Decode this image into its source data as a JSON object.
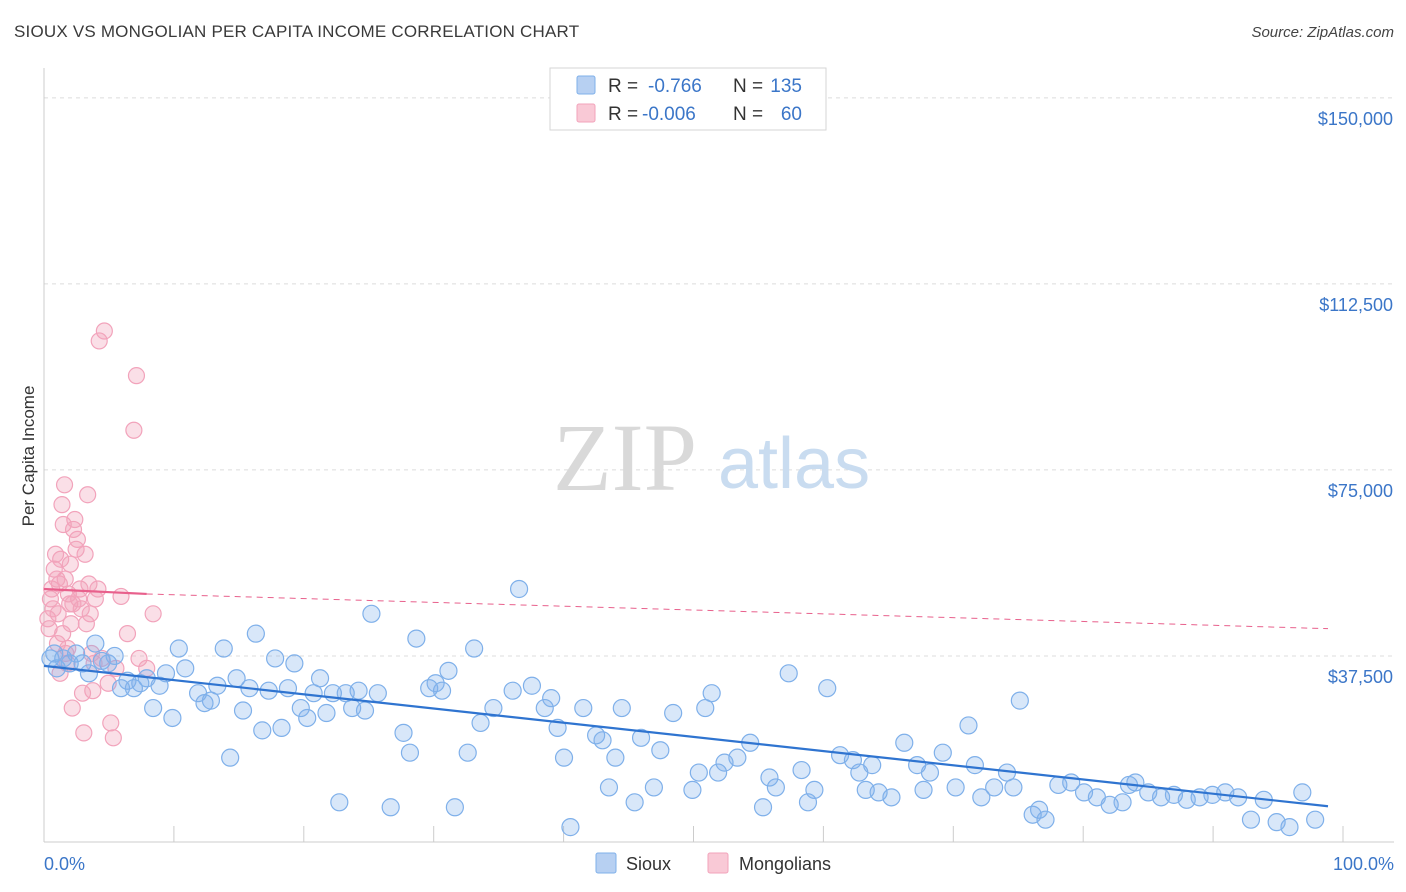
{
  "title": "SIOUX VS MONGOLIAN PER CAPITA INCOME CORRELATION CHART",
  "source": "Source: ZipAtlas.com",
  "watermark": {
    "zip": "ZIP",
    "atlas": "atlas"
  },
  "colors": {
    "sioux": "#7fb0ea",
    "sioux_line": "#2f74d0",
    "mongolians": "#f2a3bb",
    "mongolians_line": "#e8608c",
    "tick_text": "#3b76c8",
    "grid": "#dcdcdc"
  },
  "legend": {
    "rows": [
      {
        "r_label": "R =",
        "r_value": "-0.766",
        "n_label": "N =",
        "n_value": "135"
      },
      {
        "r_label": "R =",
        "r_value": "-0.006",
        "n_label": "N =",
        "n_value": "60"
      }
    ]
  },
  "bottom_legend": [
    "Sioux",
    "Mongolians"
  ],
  "chart_data": {
    "type": "scatter",
    "title": "SIOUX VS MONGOLIAN PER CAPITA INCOME CORRELATION CHART",
    "xlabel": "",
    "ylabel": "Per Capita Income",
    "x_tick_labels": [
      "0.0%",
      "100.0%"
    ],
    "y_tick_labels": [
      "$37,500",
      "$75,000",
      "$112,500",
      "$150,000"
    ],
    "y_ticks": [
      37500,
      75000,
      112500,
      150000
    ],
    "xlim": [
      0,
      100
    ],
    "ylim": [
      0,
      154000
    ],
    "grid": true,
    "legend_position": "top-center",
    "series": [
      {
        "name": "Sioux",
        "r": -0.766,
        "n": 135,
        "trend": {
          "x": [
            0,
            100
          ],
          "y": [
            35500,
            7200
          ],
          "style": "solid"
        },
        "points": [
          [
            0.5,
            37000
          ],
          [
            0.8,
            38000
          ],
          [
            1,
            35000
          ],
          [
            1.5,
            37000
          ],
          [
            2,
            36000
          ],
          [
            2.5,
            38000
          ],
          [
            3,
            36000
          ],
          [
            3.5,
            34000
          ],
          [
            4,
            40000
          ],
          [
            4.5,
            36500
          ],
          [
            5,
            36000
          ],
          [
            5.5,
            37500
          ],
          [
            6,
            31000
          ],
          [
            6.5,
            32500
          ],
          [
            7,
            31000
          ],
          [
            7.5,
            32000
          ],
          [
            8,
            33000
          ],
          [
            8.5,
            27000
          ],
          [
            9,
            31500
          ],
          [
            9.5,
            34000
          ],
          [
            10,
            25000
          ],
          [
            10.5,
            39000
          ],
          [
            11,
            35000
          ],
          [
            12,
            30000
          ],
          [
            12.5,
            28000
          ],
          [
            13,
            28500
          ],
          [
            13.5,
            31500
          ],
          [
            14,
            39000
          ],
          [
            14.5,
            17000
          ],
          [
            15,
            33000
          ],
          [
            15.5,
            26500
          ],
          [
            16,
            31000
          ],
          [
            16.5,
            42000
          ],
          [
            17,
            22500
          ],
          [
            17.5,
            30500
          ],
          [
            18,
            37000
          ],
          [
            18.5,
            23000
          ],
          [
            19,
            31000
          ],
          [
            19.5,
            36000
          ],
          [
            20,
            27000
          ],
          [
            20.5,
            25000
          ],
          [
            21,
            30000
          ],
          [
            21.5,
            33000
          ],
          [
            22,
            26000
          ],
          [
            22.5,
            30000
          ],
          [
            23,
            8000
          ],
          [
            23.5,
            30000
          ],
          [
            24,
            27000
          ],
          [
            24.5,
            30500
          ],
          [
            25,
            26500
          ],
          [
            25.5,
            46000
          ],
          [
            26,
            30000
          ],
          [
            27,
            7000
          ],
          [
            28,
            22000
          ],
          [
            28.5,
            18000
          ],
          [
            29,
            41000
          ],
          [
            30,
            31000
          ],
          [
            30.5,
            32000
          ],
          [
            31,
            30500
          ],
          [
            31.5,
            34500
          ],
          [
            32,
            7000
          ],
          [
            33,
            18000
          ],
          [
            33.5,
            39000
          ],
          [
            34,
            24000
          ],
          [
            35,
            27000
          ],
          [
            36.5,
            30500
          ],
          [
            37,
            51000
          ],
          [
            38,
            31500
          ],
          [
            39,
            27000
          ],
          [
            39.5,
            29000
          ],
          [
            40,
            23000
          ],
          [
            40.5,
            17000
          ],
          [
            41,
            3000
          ],
          [
            42,
            27000
          ],
          [
            43,
            21500
          ],
          [
            43.5,
            20500
          ],
          [
            44,
            11000
          ],
          [
            44.5,
            17000
          ],
          [
            45,
            27000
          ],
          [
            46,
            8000
          ],
          [
            46.5,
            21000
          ],
          [
            47.5,
            11000
          ],
          [
            48,
            18500
          ],
          [
            49,
            26000
          ],
          [
            50.5,
            10500
          ],
          [
            51,
            14000
          ],
          [
            51.5,
            27000
          ],
          [
            52,
            30000
          ],
          [
            52.5,
            14000
          ],
          [
            53,
            16000
          ],
          [
            54,
            17000
          ],
          [
            55,
            20000
          ],
          [
            56,
            7000
          ],
          [
            56.5,
            13000
          ],
          [
            57,
            11000
          ],
          [
            58,
            34000
          ],
          [
            59,
            14500
          ],
          [
            59.5,
            8000
          ],
          [
            60,
            10500
          ],
          [
            61,
            31000
          ],
          [
            62,
            17500
          ],
          [
            63,
            16500
          ],
          [
            63.5,
            14000
          ],
          [
            64,
            10500
          ],
          [
            64.5,
            15500
          ],
          [
            65,
            10000
          ],
          [
            66,
            9000
          ],
          [
            67,
            20000
          ],
          [
            68,
            15500
          ],
          [
            68.5,
            10500
          ],
          [
            69,
            14000
          ],
          [
            70,
            18000
          ],
          [
            71,
            11000
          ],
          [
            72,
            23500
          ],
          [
            72.5,
            15500
          ],
          [
            73,
            9000
          ],
          [
            74,
            11000
          ],
          [
            75,
            14000
          ],
          [
            75.5,
            11000
          ],
          [
            76,
            28500
          ],
          [
            77,
            5500
          ],
          [
            77.5,
            6500
          ],
          [
            78,
            4500
          ],
          [
            79,
            11500
          ],
          [
            80,
            12000
          ],
          [
            81,
            10000
          ],
          [
            82,
            9000
          ],
          [
            83,
            7500
          ],
          [
            84,
            8000
          ],
          [
            84.5,
            11500
          ],
          [
            85,
            12000
          ],
          [
            86,
            10000
          ],
          [
            87,
            9000
          ],
          [
            88,
            9500
          ],
          [
            89,
            8500
          ],
          [
            90,
            9000
          ],
          [
            91,
            9500
          ],
          [
            92,
            10000
          ],
          [
            93,
            9000
          ],
          [
            94,
            4500
          ],
          [
            95,
            8500
          ],
          [
            96,
            4000
          ],
          [
            97,
            3000
          ],
          [
            98,
            10000
          ],
          [
            99,
            4500
          ]
        ]
      },
      {
        "name": "Mongolians",
        "r": -0.006,
        "n": 60,
        "trend": {
          "x": [
            0,
            8
          ],
          "y": [
            51000,
            50000
          ],
          "style": "solid",
          "extended": {
            "x": [
              8,
              100
            ],
            "y": [
              50000,
              43000
            ],
            "style": "dashed"
          }
        },
        "points": [
          [
            0.4,
            43000
          ],
          [
            0.5,
            49000
          ],
          [
            0.6,
            51000
          ],
          [
            0.8,
            55000
          ],
          [
            1,
            53000
          ],
          [
            1.1,
            46000
          ],
          [
            1.2,
            52000
          ],
          [
            1.3,
            57000
          ],
          [
            1.4,
            68000
          ],
          [
            1.5,
            64000
          ],
          [
            1.6,
            72000
          ],
          [
            1.7,
            38000
          ],
          [
            1.8,
            36000
          ],
          [
            1.9,
            50000
          ],
          [
            2,
            48000
          ],
          [
            2.1,
            44000
          ],
          [
            2.2,
            27000
          ],
          [
            2.3,
            63000
          ],
          [
            2.4,
            65000
          ],
          [
            2.5,
            59000
          ],
          [
            2.6,
            61000
          ],
          [
            2.7,
            49000
          ],
          [
            2.8,
            51000
          ],
          [
            2.9,
            47000
          ],
          [
            3,
            30000
          ],
          [
            3.1,
            22000
          ],
          [
            3.2,
            58000
          ],
          [
            3.3,
            44000
          ],
          [
            3.4,
            70000
          ],
          [
            3.5,
            52000
          ],
          [
            3.6,
            46000
          ],
          [
            3.7,
            38000
          ],
          [
            3.8,
            30500
          ],
          [
            3.9,
            36000
          ],
          [
            4,
            49000
          ],
          [
            4.2,
            51000
          ],
          [
            4.3,
            101000
          ],
          [
            4.5,
            37000
          ],
          [
            4.7,
            103000
          ],
          [
            5,
            32000
          ],
          [
            5.2,
            24000
          ],
          [
            5.4,
            21000
          ],
          [
            5.6,
            35000
          ],
          [
            6,
            49500
          ],
          [
            6.5,
            42000
          ],
          [
            7,
            83000
          ],
          [
            7.2,
            94000
          ],
          [
            7.4,
            37000
          ],
          [
            8,
            35000
          ],
          [
            8.5,
            46000
          ],
          [
            0.3,
            45000
          ],
          [
            0.7,
            47000
          ],
          [
            0.9,
            58000
          ],
          [
            1.05,
            40000
          ],
          [
            1.25,
            34000
          ],
          [
            1.45,
            42000
          ],
          [
            1.65,
            53000
          ],
          [
            1.85,
            39000
          ],
          [
            2.05,
            56000
          ],
          [
            2.25,
            48000
          ]
        ]
      }
    ]
  }
}
